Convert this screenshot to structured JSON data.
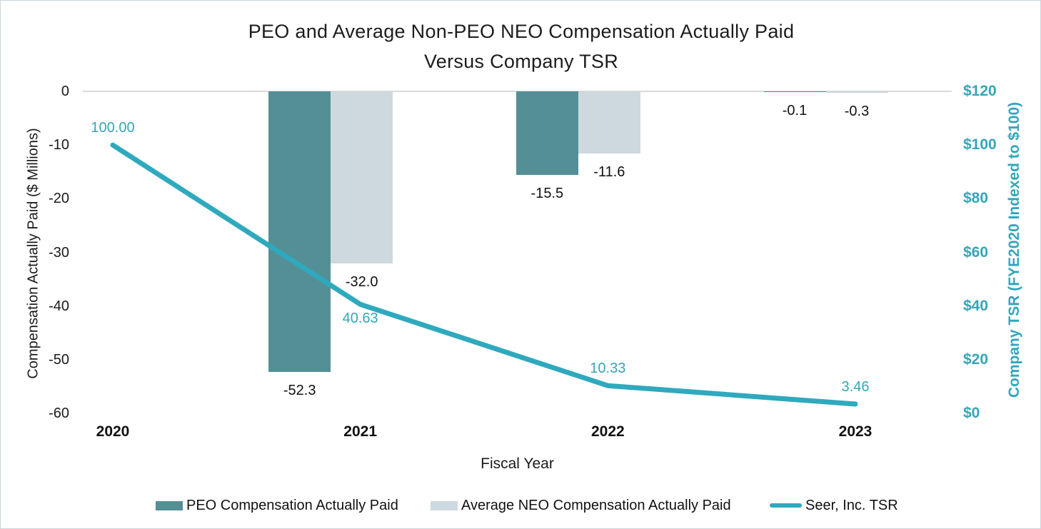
{
  "title": {
    "line1": "PEO and Average Non-PEO NEO Compensation Actually Paid",
    "line2": "Versus Company TSR"
  },
  "chart_data": {
    "type": "combo-bar-line",
    "categories": [
      "2020",
      "2021",
      "2022",
      "2023"
    ],
    "x_axis_label": "Fiscal Year",
    "left_axis": {
      "title": "Compensation Actually Paid ($ Millions)",
      "ticks": [
        "0",
        "-10",
        "-20",
        "-30",
        "-40",
        "-50",
        "-60"
      ],
      "max": 0,
      "min": -60
    },
    "right_axis": {
      "title": "Company TSR (FYE2020 Indexed to $100)",
      "ticks": [
        "$120",
        "$100",
        "$80",
        "$60",
        "$40",
        "$20",
        "$0"
      ],
      "max": 120,
      "min": 0
    },
    "series": [
      {
        "name": "PEO Compensation Actually Paid",
        "type": "bar",
        "axis": "left",
        "color": "#548f96",
        "values": [
          null,
          -52.3,
          -15.5,
          -0.1
        ],
        "labels": [
          "",
          "-52.3",
          "-15.5",
          "-0.1"
        ]
      },
      {
        "name": "Average NEO Compensation Actually Paid",
        "type": "bar",
        "axis": "left",
        "color": "#cdd9de",
        "values": [
          null,
          -32.0,
          -11.6,
          -0.3
        ],
        "labels": [
          "",
          "-32.0",
          "-11.6",
          "-0.3"
        ]
      },
      {
        "name": "Seer, Inc. TSR",
        "type": "line",
        "axis": "right",
        "color": "#2fa9bd",
        "values": [
          100.0,
          40.63,
          10.33,
          3.46
        ],
        "labels": [
          "100.00",
          "40.63",
          "10.33",
          "3.46"
        ],
        "label_positions": [
          "above",
          "below",
          "above",
          "above"
        ]
      }
    ],
    "legend_position": "bottom",
    "grid": "horizontal-zero-line-only"
  },
  "colors": {
    "peo_bar": "#548f96",
    "neo_bar": "#cdd9de",
    "tsr_line": "#2fa9bd",
    "teal_text": "#33a6ba",
    "gridline": "#d9d9d9",
    "text": "#1a1a1a"
  }
}
